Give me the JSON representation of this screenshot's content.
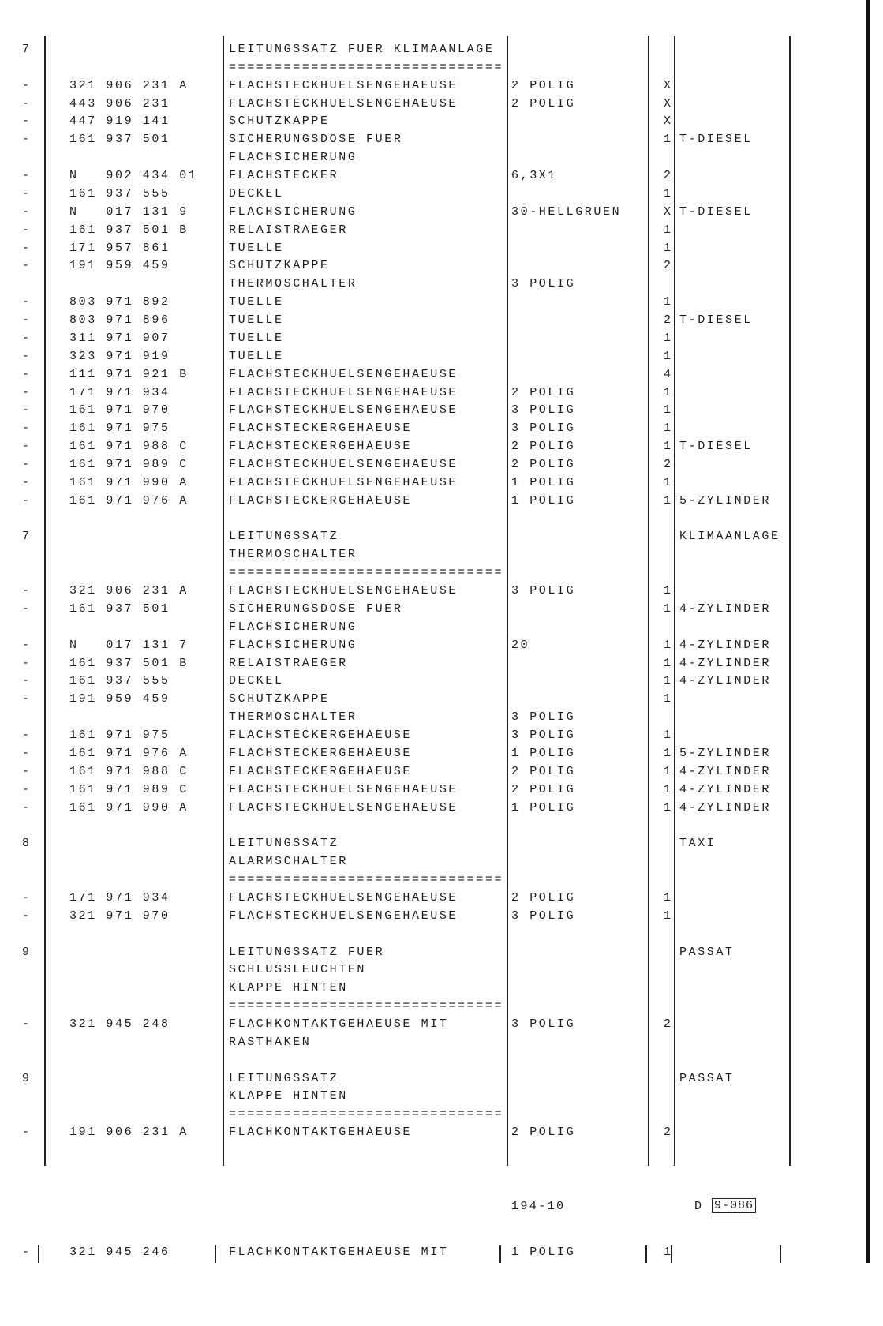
{
  "columns": [
    "item",
    "part_number",
    "description",
    "specification",
    "quantity",
    "remark"
  ],
  "rows": [
    [
      "7",
      "",
      "LEITUNGSSATZ FUER KLIMAANLAGE",
      "",
      "",
      ""
    ],
    [
      "",
      "",
      "==============================",
      "",
      "",
      ""
    ],
    [
      "-",
      "321 906 231 A",
      "FLACHSTECKHUELSENGEHAEUSE",
      "2 POLIG",
      "X",
      ""
    ],
    [
      "-",
      "443 906 231",
      "FLACHSTECKHUELSENGEHAEUSE",
      "2 POLIG",
      "X",
      ""
    ],
    [
      "-",
      "447 919 141",
      "SCHUTZKAPPE",
      "",
      "X",
      ""
    ],
    [
      "-",
      "161 937 501",
      "SICHERUNGSDOSE FUER",
      "",
      "1",
      "T-DIESEL"
    ],
    [
      "",
      "",
      "FLACHSICHERUNG",
      "",
      "",
      ""
    ],
    [
      "-",
      "N   902 434 01",
      "FLACHSTECKER",
      "6,3X1",
      "2",
      ""
    ],
    [
      "-",
      "161 937 555",
      "DECKEL",
      "",
      "1",
      ""
    ],
    [
      "-",
      "N   017 131 9",
      "FLACHSICHERUNG",
      "30-HELLGRUEN",
      "X",
      "T-DIESEL"
    ],
    [
      "-",
      "161 937 501 B",
      "RELAISTRAEGER",
      "",
      "1",
      ""
    ],
    [
      "-",
      "171 957 861",
      "TUELLE",
      "",
      "1",
      ""
    ],
    [
      "-",
      "191 959 459",
      "SCHUTZKAPPE",
      "",
      "2",
      ""
    ],
    [
      "",
      "",
      "THERMOSCHALTER",
      "3 POLIG",
      "",
      ""
    ],
    [
      "-",
      "803 971 892",
      "TUELLE",
      "",
      "1",
      ""
    ],
    [
      "-",
      "803 971 896",
      "TUELLE",
      "",
      "2",
      "T-DIESEL"
    ],
    [
      "-",
      "311 971 907",
      "TUELLE",
      "",
      "1",
      ""
    ],
    [
      "-",
      "323 971 919",
      "TUELLE",
      "",
      "1",
      ""
    ],
    [
      "-",
      "111 971 921 B",
      "FLACHSTECKHUELSENGEHAEUSE",
      "",
      "4",
      ""
    ],
    [
      "-",
      "171 971 934",
      "FLACHSTECKHUELSENGEHAEUSE",
      "2 POLIG",
      "1",
      ""
    ],
    [
      "-",
      "161 971 970",
      "FLACHSTECKHUELSENGEHAEUSE",
      "3 POLIG",
      "1",
      ""
    ],
    [
      "-",
      "161 971 975",
      "FLACHSTECKERGEHAEUSE",
      "3 POLIG",
      "1",
      ""
    ],
    [
      "-",
      "161 971 988 C",
      "FLACHSTECKERGEHAEUSE",
      "2 POLIG",
      "1",
      "T-DIESEL"
    ],
    [
      "-",
      "161 971 989 C",
      "FLACHSTECKHUELSENGEHAEUSE",
      "2 POLIG",
      "2",
      ""
    ],
    [
      "-",
      "161 971 990 A",
      "FLACHSTECKHUELSENGEHAEUSE",
      "1 POLIG",
      "1",
      ""
    ],
    [
      "-",
      "161 971 976 A",
      "FLACHSTECKERGEHAEUSE",
      "1 POLIG",
      "1",
      "5-ZYLINDER"
    ],
    [
      "",
      "",
      "",
      "",
      "",
      ""
    ],
    [
      "7",
      "",
      "LEITUNGSSATZ",
      "",
      "",
      "KLIMAANLAGE"
    ],
    [
      "",
      "",
      "THERMOSCHALTER",
      "",
      "",
      ""
    ],
    [
      "",
      "",
      "==============================",
      "",
      "",
      ""
    ],
    [
      "-",
      "321 906 231 A",
      "FLACHSTECKHUELSENGEHAEUSE",
      "3 POLIG",
      "1",
      ""
    ],
    [
      "-",
      "161 937 501",
      "SICHERUNGSDOSE FUER",
      "",
      "1",
      "4-ZYLINDER"
    ],
    [
      "",
      "",
      "FLACHSICHERUNG",
      "",
      "",
      ""
    ],
    [
      "-",
      "N   017 131 7",
      "FLACHSICHERUNG",
      "20",
      "1",
      "4-ZYLINDER"
    ],
    [
      "-",
      "161 937 501 B",
      "RELAISTRAEGER",
      "",
      "1",
      "4-ZYLINDER"
    ],
    [
      "-",
      "161 937 555",
      "DECKEL",
      "",
      "1",
      "4-ZYLINDER"
    ],
    [
      "-",
      "191 959 459",
      "SCHUTZKAPPE",
      "",
      "1",
      ""
    ],
    [
      "",
      "",
      "THERMOSCHALTER",
      "3 POLIG",
      "",
      ""
    ],
    [
      "-",
      "161 971 975",
      "FLACHSTECKERGEHAEUSE",
      "3 POLIG",
      "1",
      ""
    ],
    [
      "-",
      "161 971 976 A",
      "FLACHSTECKERGEHAEUSE",
      "1 POLIG",
      "1",
      "5-ZYLINDER"
    ],
    [
      "-",
      "161 971 988 C",
      "FLACHSTECKERGEHAEUSE",
      "2 POLIG",
      "1",
      "4-ZYLINDER"
    ],
    [
      "-",
      "161 971 989 C",
      "FLACHSTECKHUELSENGEHAEUSE",
      "2 POLIG",
      "1",
      "4-ZYLINDER"
    ],
    [
      "-",
      "161 971 990 A",
      "FLACHSTECKHUELSENGEHAEUSE",
      "1 POLIG",
      "1",
      "4-ZYLINDER"
    ],
    [
      "",
      "",
      "",
      "",
      "",
      ""
    ],
    [
      "8",
      "",
      "LEITUNGSSATZ",
      "",
      "",
      "TAXI"
    ],
    [
      "",
      "",
      "ALARMSCHALTER",
      "",
      "",
      ""
    ],
    [
      "",
      "",
      "==============================",
      "",
      "",
      ""
    ],
    [
      "-",
      "171 971 934",
      "FLACHSTECKHUELSENGEHAEUSE",
      "2 POLIG",
      "1",
      ""
    ],
    [
      "-",
      "321 971 970",
      "FLACHSTECKHUELSENGEHAEUSE",
      "3 POLIG",
      "1",
      ""
    ],
    [
      "",
      "",
      "",
      "",
      "",
      ""
    ],
    [
      "9",
      "",
      "LEITUNGSSATZ FUER",
      "",
      "",
      "PASSAT"
    ],
    [
      "",
      "",
      "SCHLUSSLEUCHTEN",
      "",
      "",
      ""
    ],
    [
      "",
      "",
      "KLAPPE HINTEN",
      "",
      "",
      ""
    ],
    [
      "",
      "",
      "==============================",
      "",
      "",
      ""
    ],
    [
      "-",
      "321 945 248",
      "FLACHKONTAKTGEHAEUSE MIT",
      "3 POLIG",
      "2",
      ""
    ],
    [
      "",
      "",
      "RASTHAKEN",
      "",
      "",
      ""
    ],
    [
      "",
      "",
      "",
      "",
      "",
      ""
    ],
    [
      "9",
      "",
      "LEITUNGSSATZ",
      "",
      "",
      "PASSAT"
    ],
    [
      "",
      "",
      "KLAPPE HINTEN",
      "",
      "",
      ""
    ],
    [
      "",
      "",
      "==============================",
      "",
      "",
      ""
    ],
    [
      "-",
      "191 906 231 A",
      "FLACHKONTAKTGEHAEUSE",
      "2 POLIG",
      "2",
      ""
    ]
  ],
  "footer": {
    "page_ref": "194-10",
    "language": "D",
    "page_number": "9-086"
  },
  "next_page_partial_row": [
    "-",
    "321 945 246",
    "FLACHKONTAKTGEHAEUSE MIT",
    "1 POLIG",
    "1",
    ""
  ]
}
